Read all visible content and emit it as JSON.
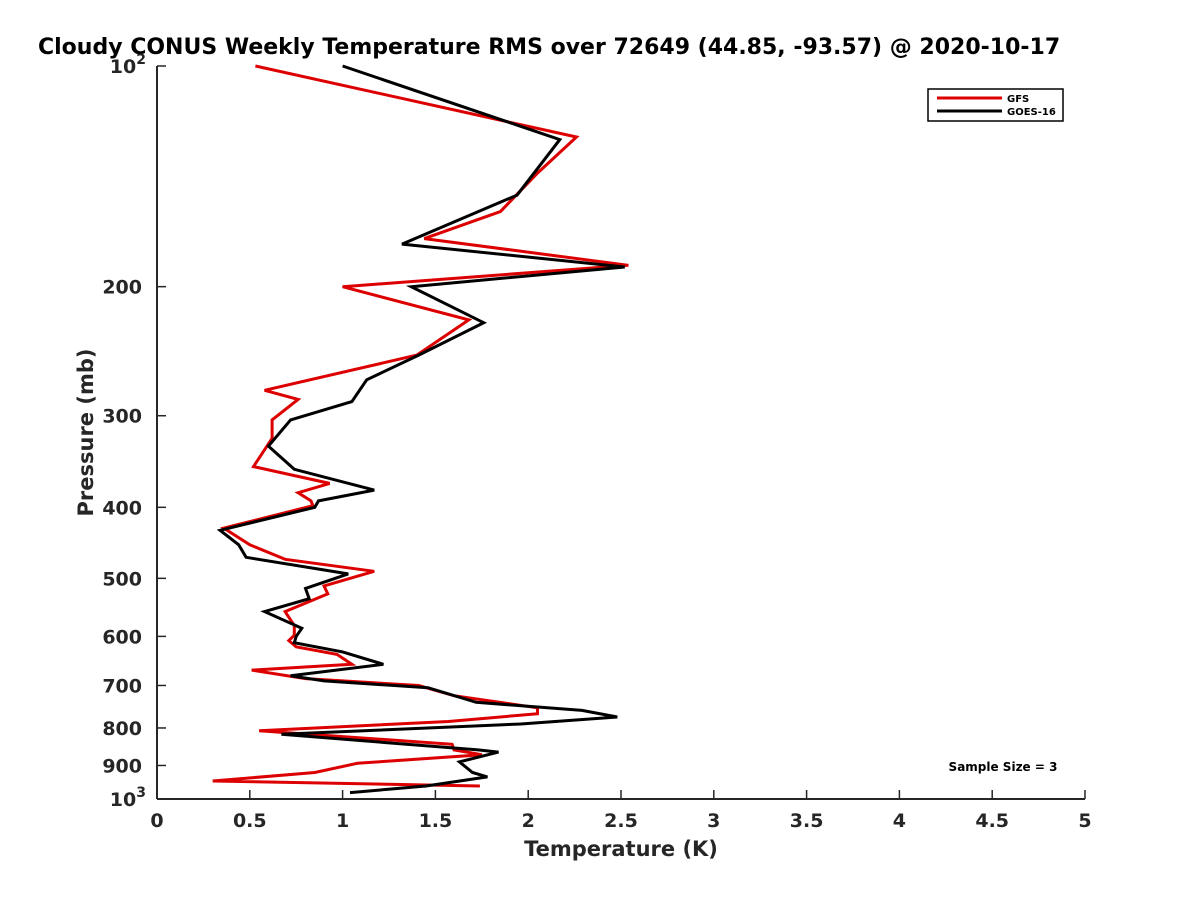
{
  "chart_data": {
    "type": "line",
    "title": "Cloudy CONUS Weekly Temperature RMS over 72649 (44.85, -93.57) @ 2020-10-17",
    "xlabel": "Temperature (K)",
    "ylabel": "Pressure (mb)",
    "xlim": [
      0,
      5
    ],
    "ylim": [
      100,
      1000
    ],
    "y_scale": "log",
    "y_reversed": true,
    "grid": false,
    "legend_position": "top-right",
    "x_ticks": [
      {
        "value": 0,
        "label": "0"
      },
      {
        "value": 0.5,
        "label": "0.5"
      },
      {
        "value": 1,
        "label": "1"
      },
      {
        "value": 1.5,
        "label": "1.5"
      },
      {
        "value": 2,
        "label": "2"
      },
      {
        "value": 2.5,
        "label": "2.5"
      },
      {
        "value": 3,
        "label": "3"
      },
      {
        "value": 3.5,
        "label": "3.5"
      },
      {
        "value": 4,
        "label": "4"
      },
      {
        "value": 4.5,
        "label": "4.5"
      },
      {
        "value": 5,
        "label": "5"
      }
    ],
    "y_ticks": [
      {
        "value": 100,
        "base": "10",
        "exp": "2"
      },
      {
        "value": 200,
        "label": "200"
      },
      {
        "value": 300,
        "label": "300"
      },
      {
        "value": 400,
        "label": "400"
      },
      {
        "value": 500,
        "label": "500"
      },
      {
        "value": 600,
        "label": "600"
      },
      {
        "value": 700,
        "label": "700"
      },
      {
        "value": 800,
        "label": "800"
      },
      {
        "value": 900,
        "label": "900"
      },
      {
        "value": 1000,
        "base": "10",
        "exp": "3"
      }
    ],
    "annotation": "Sample Size = 3",
    "series": [
      {
        "name": "GFS",
        "color": "#dd0000",
        "points": [
          [
            0.53,
            100
          ],
          [
            2.26,
            125
          ],
          [
            2.05,
            140
          ],
          [
            1.85,
            158
          ],
          [
            1.44,
            172
          ],
          [
            2.54,
            187
          ],
          [
            1.0,
            200
          ],
          [
            1.68,
            222
          ],
          [
            1.4,
            248
          ],
          [
            0.58,
            277
          ],
          [
            0.76,
            285
          ],
          [
            0.62,
            304
          ],
          [
            0.62,
            322
          ],
          [
            0.52,
            352
          ],
          [
            0.93,
            371
          ],
          [
            0.76,
            382
          ],
          [
            0.83,
            392
          ],
          [
            0.84,
            398
          ],
          [
            0.36,
            427
          ],
          [
            0.5,
            450
          ],
          [
            0.69,
            471
          ],
          [
            1.17,
            489
          ],
          [
            0.9,
            512
          ],
          [
            0.92,
            525
          ],
          [
            0.69,
            555
          ],
          [
            0.74,
            580
          ],
          [
            0.74,
            598
          ],
          [
            0.71,
            608
          ],
          [
            0.75,
            620
          ],
          [
            0.97,
            635
          ],
          [
            1.05,
            655
          ],
          [
            0.51,
            667
          ],
          [
            0.8,
            685
          ],
          [
            1.41,
            700
          ],
          [
            1.6,
            723
          ],
          [
            2.05,
            751
          ],
          [
            2.05,
            765
          ],
          [
            1.57,
            784
          ],
          [
            0.55,
            807
          ],
          [
            1.59,
            842
          ],
          [
            1.6,
            857
          ],
          [
            1.75,
            870
          ],
          [
            1.08,
            894
          ],
          [
            0.85,
            920
          ],
          [
            0.3,
            945
          ],
          [
            1.74,
            960
          ]
        ]
      },
      {
        "name": "GOES-16",
        "color": "#000000",
        "points": [
          [
            1.0,
            100
          ],
          [
            2.17,
            126
          ],
          [
            1.94,
            150
          ],
          [
            1.32,
            175
          ],
          [
            2.52,
            188
          ],
          [
            1.37,
            200
          ],
          [
            1.76,
            224
          ],
          [
            1.41,
            248
          ],
          [
            1.13,
            268
          ],
          [
            1.05,
            287
          ],
          [
            0.72,
            304
          ],
          [
            0.6,
            330
          ],
          [
            0.74,
            355
          ],
          [
            1.17,
            379
          ],
          [
            0.87,
            392
          ],
          [
            0.85,
            400
          ],
          [
            0.34,
            430
          ],
          [
            0.44,
            450
          ],
          [
            0.48,
            468
          ],
          [
            1.03,
            493
          ],
          [
            0.8,
            516
          ],
          [
            0.82,
            533
          ],
          [
            0.58,
            555
          ],
          [
            0.78,
            585
          ],
          [
            0.75,
            600
          ],
          [
            0.74,
            612
          ],
          [
            1.0,
            630
          ],
          [
            1.22,
            655
          ],
          [
            0.72,
            679
          ],
          [
            0.9,
            690
          ],
          [
            1.46,
            705
          ],
          [
            1.72,
            738
          ],
          [
            2.29,
            757
          ],
          [
            2.48,
            773
          ],
          [
            1.96,
            790
          ],
          [
            0.67,
            816
          ],
          [
            1.73,
            857
          ],
          [
            1.84,
            863
          ],
          [
            1.63,
            890
          ],
          [
            1.7,
            920
          ],
          [
            1.78,
            933
          ],
          [
            1.45,
            960
          ],
          [
            1.04,
            980
          ]
        ]
      }
    ]
  }
}
